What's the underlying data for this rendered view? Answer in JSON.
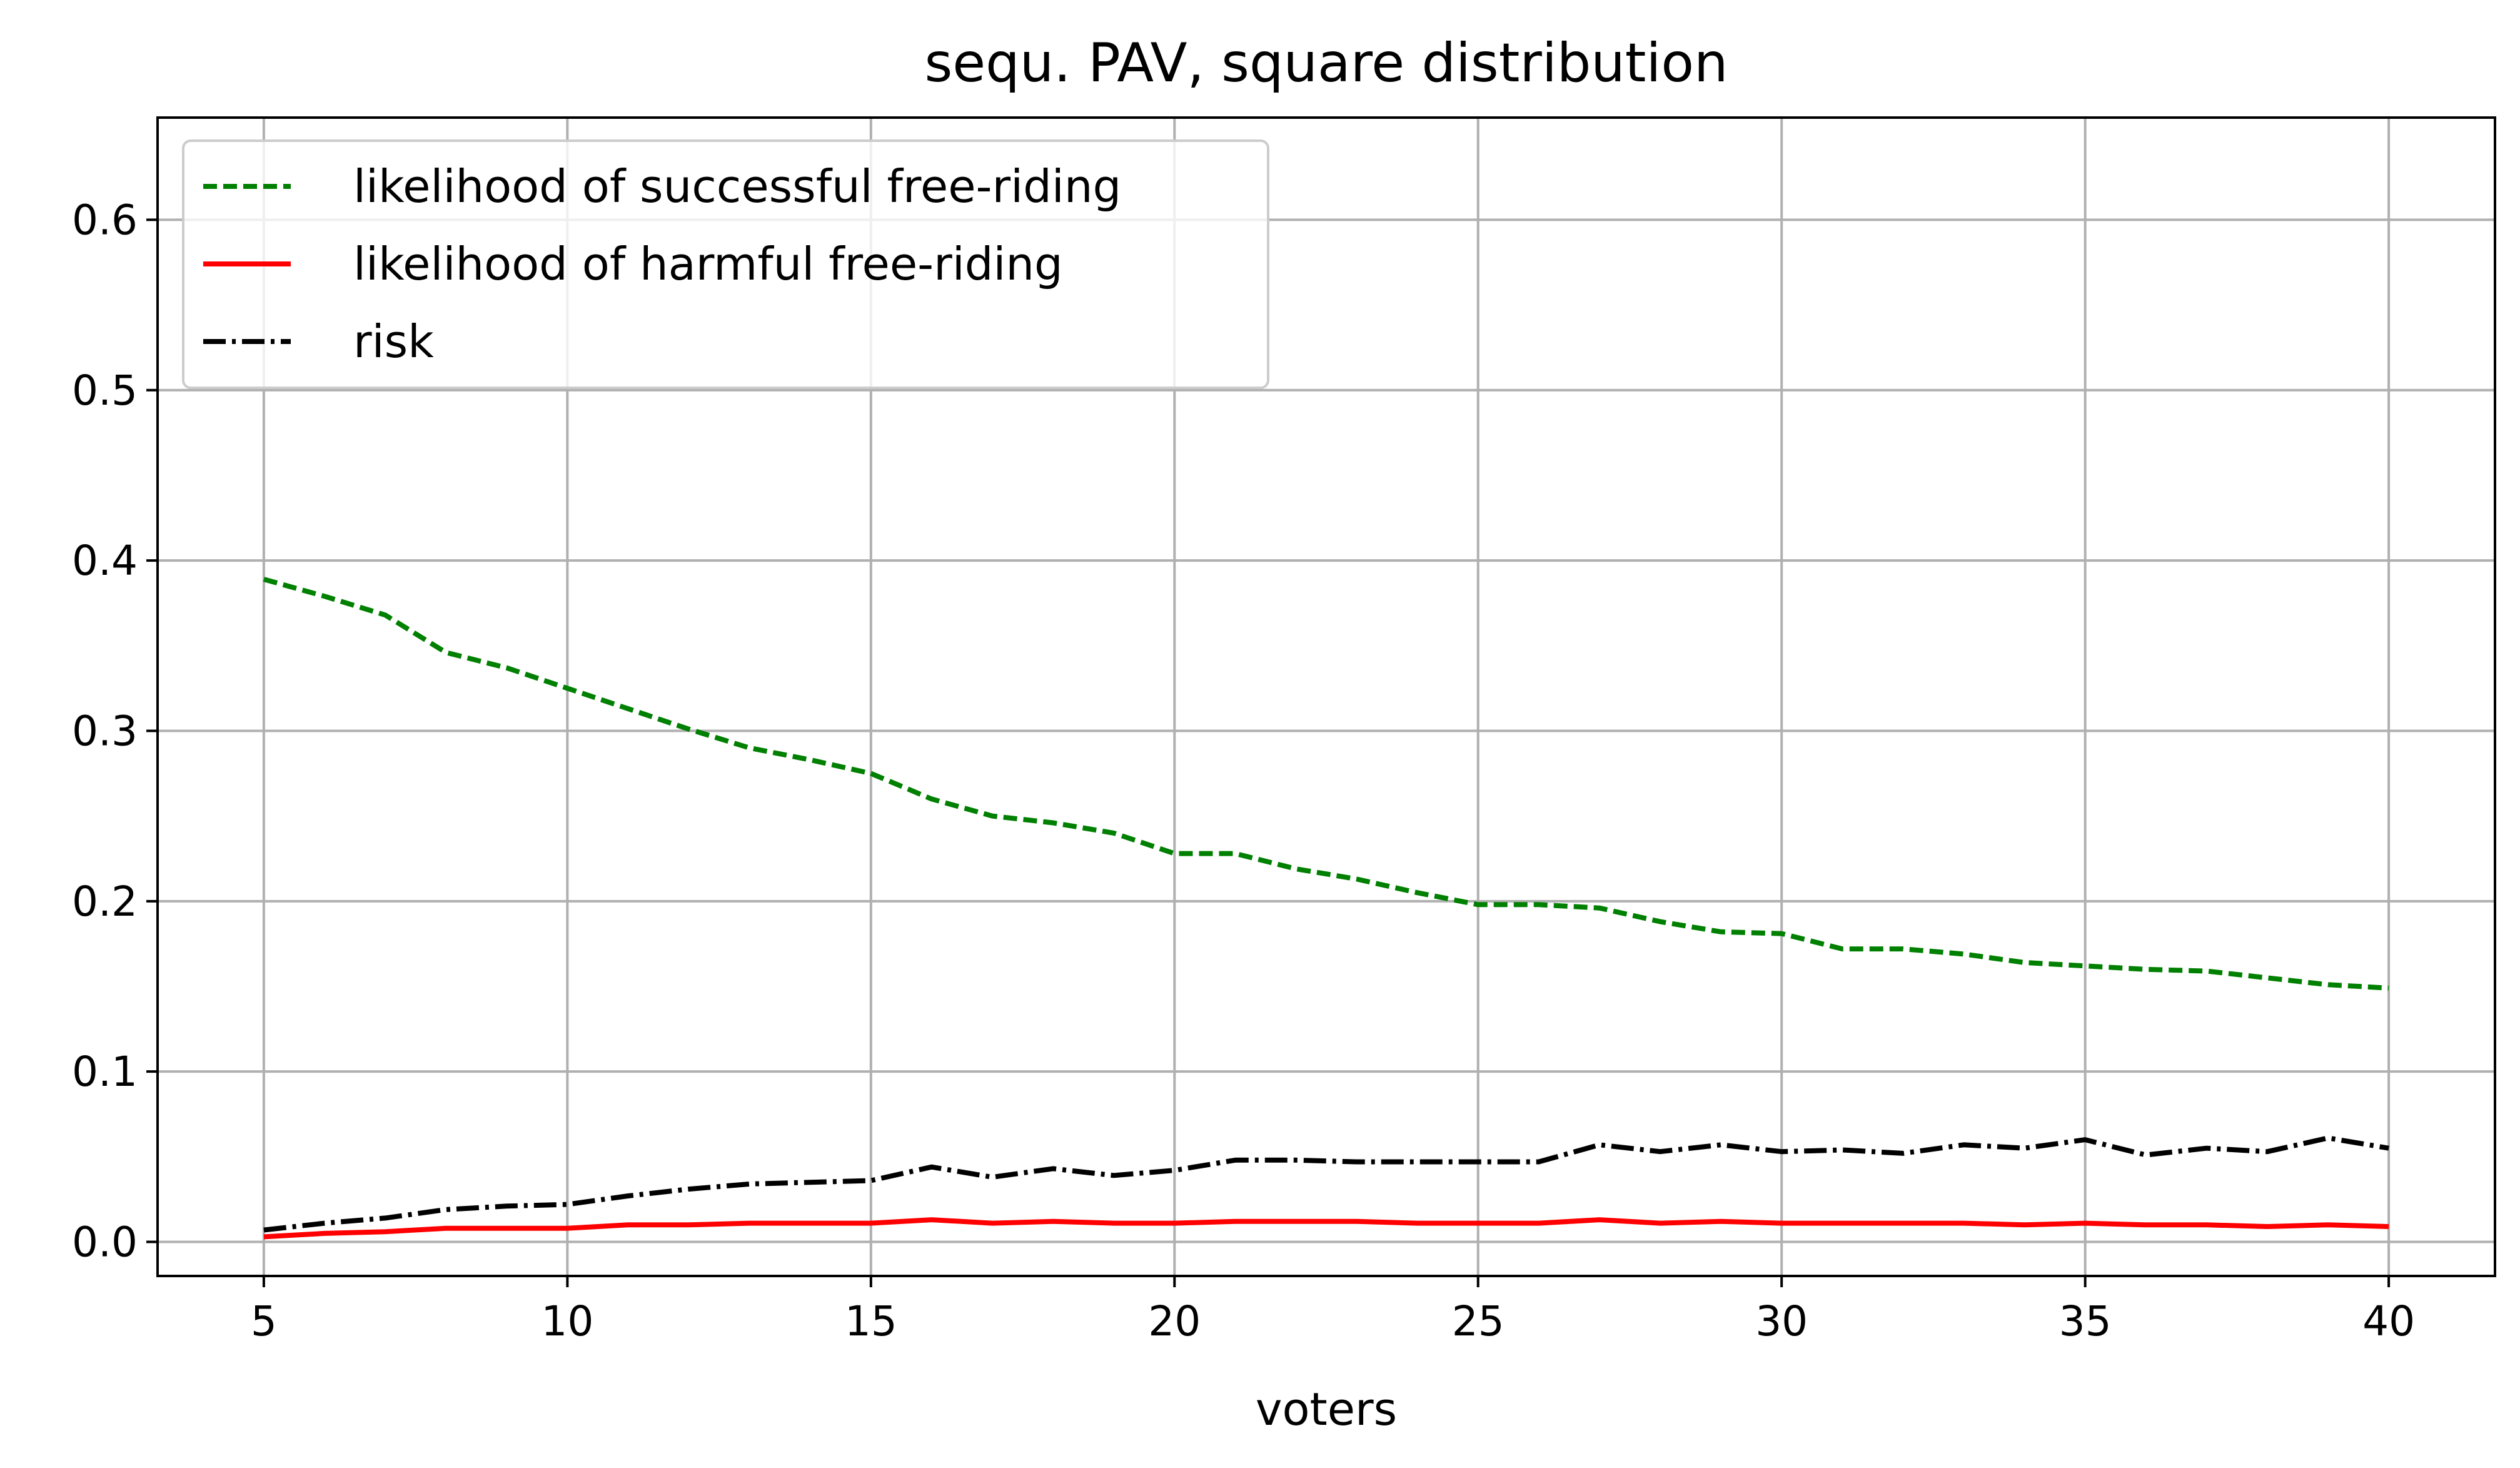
{
  "chart_data": {
    "type": "line",
    "title": "sequ. PAV, square distribution",
    "xlabel": "voters",
    "ylabel": "",
    "xlim": [
      3.25,
      41.75
    ],
    "ylim": [
      -0.02,
      0.66
    ],
    "xticks": [
      5,
      10,
      15,
      20,
      25,
      30,
      35,
      40
    ],
    "yticks": [
      0.0,
      0.1,
      0.2,
      0.3,
      0.4,
      0.5,
      0.6
    ],
    "ytick_labels": [
      "0.0",
      "0.1",
      "0.2",
      "0.3",
      "0.4",
      "0.5",
      "0.6"
    ],
    "grid": true,
    "legend_position": "upper-left",
    "x": [
      5,
      6,
      7,
      8,
      9,
      10,
      11,
      12,
      13,
      14,
      15,
      16,
      17,
      18,
      19,
      20,
      21,
      22,
      23,
      24,
      25,
      26,
      27,
      28,
      29,
      30,
      31,
      32,
      33,
      34,
      35,
      36,
      37,
      38,
      39,
      40
    ],
    "series": [
      {
        "name": "likelihood of successful free-riding",
        "color": "#008000",
        "style": "dashed",
        "values": [
          0.389,
          0.379,
          0.368,
          0.346,
          0.337,
          0.325,
          0.313,
          0.301,
          0.29,
          0.283,
          0.275,
          0.26,
          0.25,
          0.246,
          0.24,
          0.228,
          0.228,
          0.219,
          0.213,
          0.205,
          0.198,
          0.198,
          0.196,
          0.188,
          0.182,
          0.181,
          0.172,
          0.172,
          0.169,
          0.164,
          0.162,
          0.16,
          0.159,
          0.155,
          0.151,
          0.149
        ]
      },
      {
        "name": "likelihood of harmful free-riding",
        "color": "#ff0000",
        "style": "solid",
        "values": [
          0.003,
          0.005,
          0.006,
          0.008,
          0.008,
          0.008,
          0.01,
          0.01,
          0.011,
          0.011,
          0.011,
          0.013,
          0.011,
          0.012,
          0.011,
          0.011,
          0.012,
          0.012,
          0.012,
          0.011,
          0.011,
          0.011,
          0.013,
          0.011,
          0.012,
          0.011,
          0.011,
          0.011,
          0.011,
          0.01,
          0.011,
          0.01,
          0.01,
          0.009,
          0.01,
          0.009
        ]
      },
      {
        "name": "risk",
        "color": "#000000",
        "style": "dashdot",
        "values": [
          0.007,
          0.011,
          0.014,
          0.019,
          0.021,
          0.022,
          0.027,
          0.031,
          0.034,
          0.035,
          0.036,
          0.044,
          0.038,
          0.043,
          0.039,
          0.042,
          0.048,
          0.048,
          0.047,
          0.047,
          0.047,
          0.047,
          0.057,
          0.053,
          0.057,
          0.053,
          0.054,
          0.052,
          0.057,
          0.055,
          0.06,
          0.051,
          0.055,
          0.053,
          0.061,
          0.055
        ]
      }
    ]
  }
}
